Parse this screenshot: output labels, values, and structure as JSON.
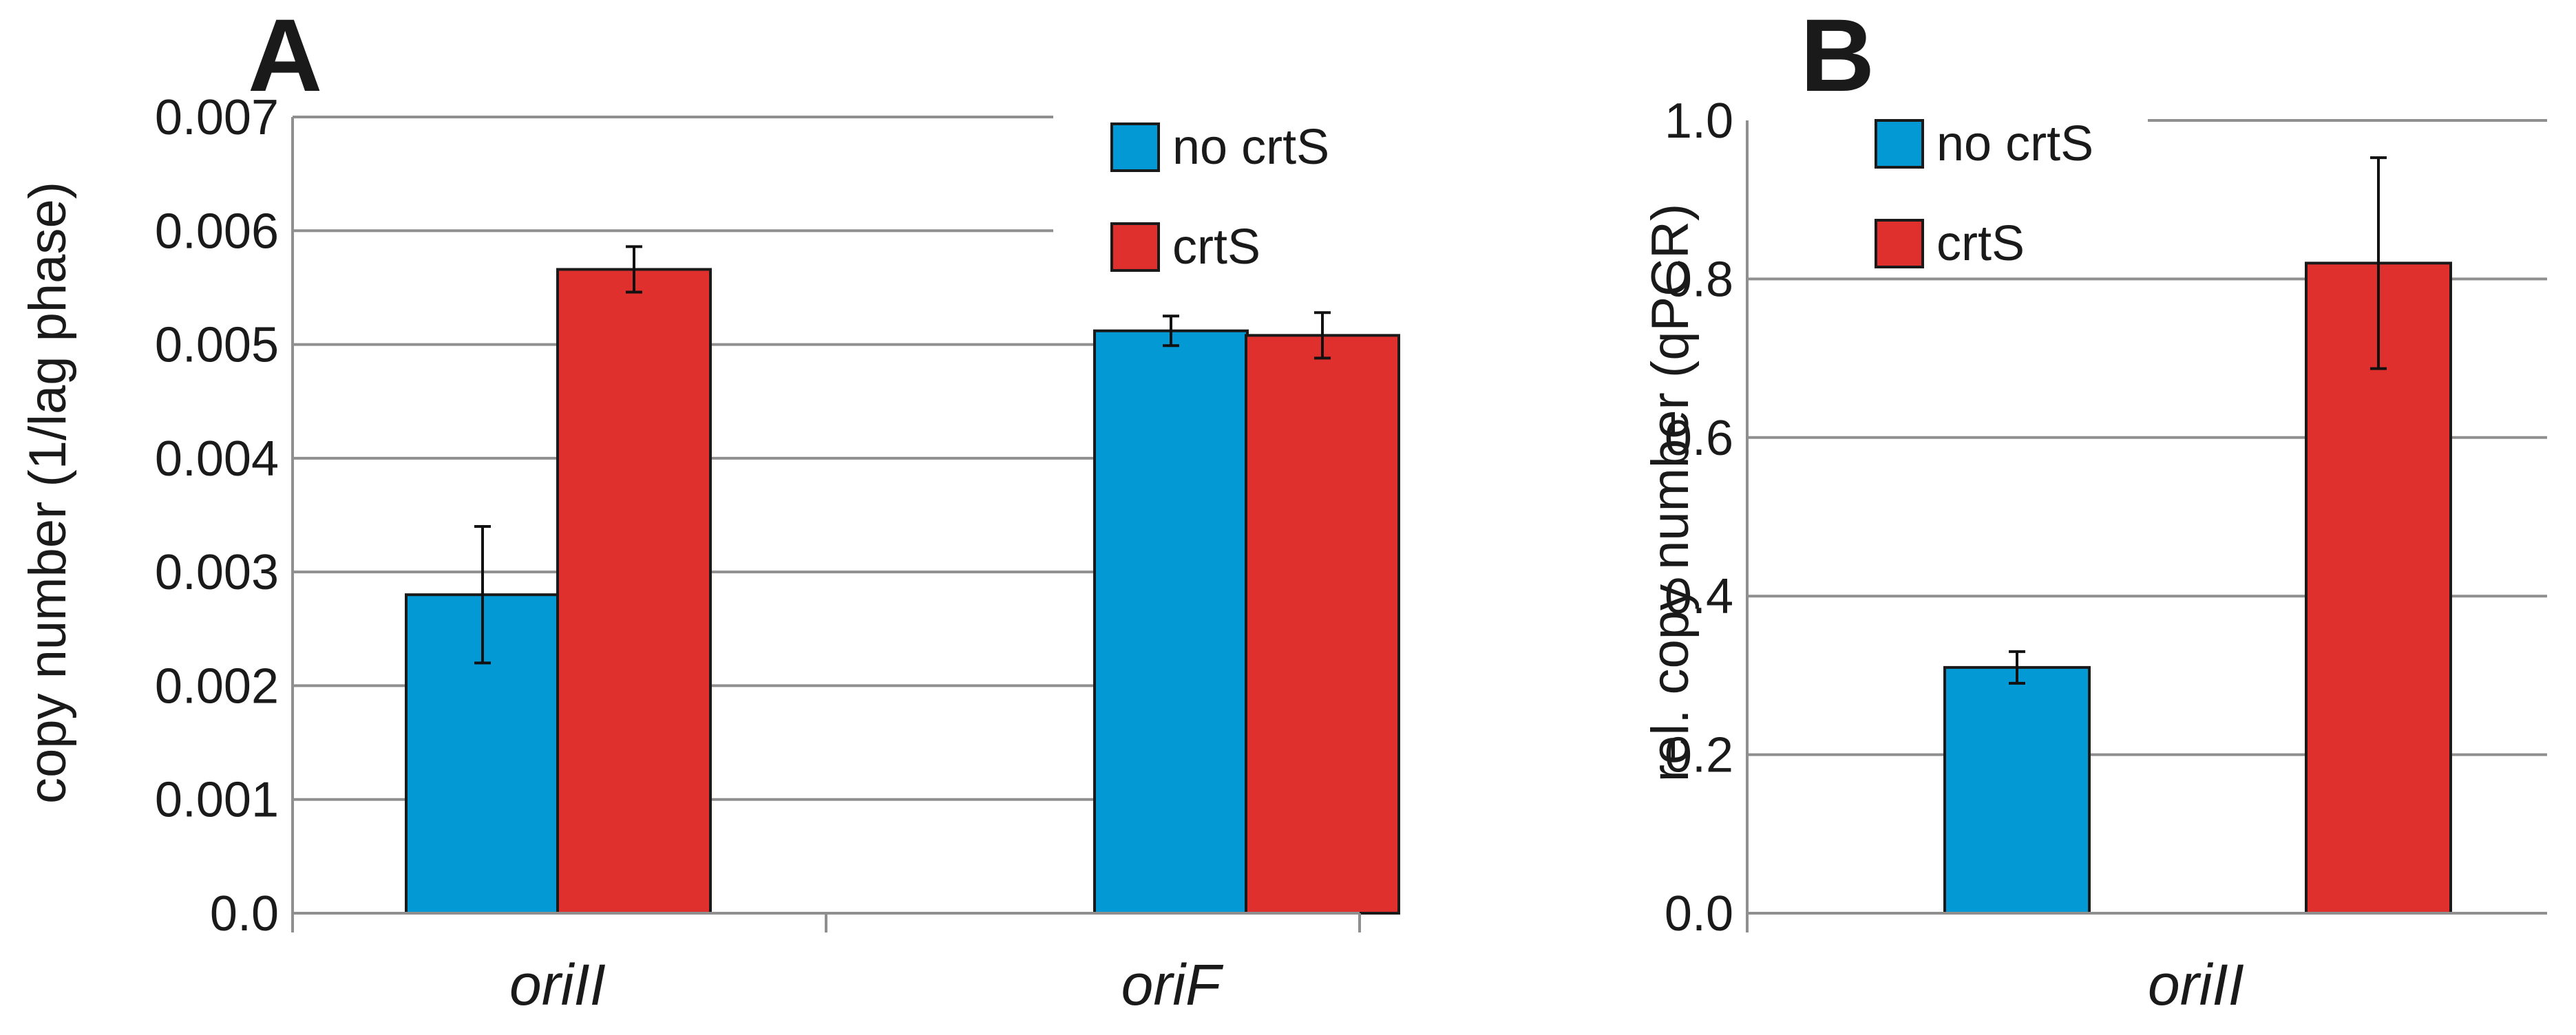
{
  "colors": {
    "no_crtS": "#0399d4",
    "crtS": "#e0302d",
    "grid": "#8f8f8f",
    "axis": "#8f8f8f",
    "error": "#111111"
  },
  "chart_data": [
    {
      "type": "bar",
      "panel": "A",
      "ylabel": "copy number (1/lag phase)",
      "ylim": [
        0,
        0.007
      ],
      "yticks": [
        "0.0",
        "0.001",
        "0.002",
        "0.003",
        "0.004",
        "0.005",
        "0.006",
        "0.007"
      ],
      "categories": [
        "oriII",
        "oriF"
      ],
      "legend": {
        "position": "top-right"
      },
      "grid": true,
      "series": [
        {
          "name": "no crtS",
          "values": [
            0.0028,
            0.00512
          ],
          "errors": [
            0.0006,
            0.00013
          ]
        },
        {
          "name": "crtS",
          "values": [
            0.00566,
            0.00508
          ],
          "errors": [
            0.0002,
            0.0002
          ]
        }
      ]
    },
    {
      "type": "bar",
      "panel": "B",
      "ylabel": "rel. copy number (qPCR)",
      "ylim": [
        0,
        1.0
      ],
      "yticks": [
        "0.0",
        "0.2",
        "0.4",
        "0.6",
        "0.8",
        "1.0"
      ],
      "categories": [
        "oriII"
      ],
      "legend": {
        "position": "top-left"
      },
      "grid": true,
      "series": [
        {
          "name": "no crtS",
          "values": [
            0.31
          ],
          "errors": [
            0.02
          ]
        },
        {
          "name": "crtS",
          "values": [
            0.82
          ],
          "errors": [
            0.133
          ]
        }
      ]
    }
  ]
}
